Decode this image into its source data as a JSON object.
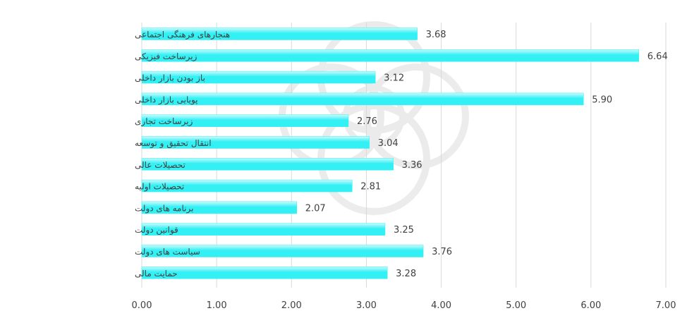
{
  "chart_data": {
    "type": "bar",
    "orientation": "horizontal",
    "categories": [
      "هنجارهای فرهنگی اجتماعی",
      "زیرساخت فیزیکی",
      "باز بودن بازار داخلی",
      "پویایی بازار داخلی",
      "زیرساخت تجاری",
      "انتقال تحقیق و توسعه",
      "تحصیلات عالی",
      "تحصیلات اولیه",
      "برنامه های دولت",
      "قوانین دولت",
      "سیاست های دولت",
      "حمایت مالی"
    ],
    "values": [
      3.68,
      6.64,
      3.12,
      5.9,
      2.76,
      3.04,
      3.36,
      2.81,
      2.07,
      3.25,
      3.76,
      3.28
    ],
    "value_labels": [
      "3.68",
      "6.64",
      "3.12",
      "5.90",
      "2.76",
      "3.04",
      "3.36",
      "2.81",
      "2.07",
      "3.25",
      "3.76",
      "3.28"
    ],
    "xlim": [
      0,
      7
    ],
    "x_ticks": [
      "0.00",
      "1.00",
      "2.00",
      "3.00",
      "4.00",
      "5.00",
      "6.00",
      "7.00"
    ],
    "grid": "vertical",
    "legend": "none",
    "title": "",
    "xlabel": "",
    "ylabel": "",
    "colors": {
      "bar_fill": "#33f0f4",
      "bar_highlight": "#cafbfd",
      "grid": "#d9d9d9",
      "text": "#404040",
      "watermark": "#c8c8c8"
    }
  }
}
